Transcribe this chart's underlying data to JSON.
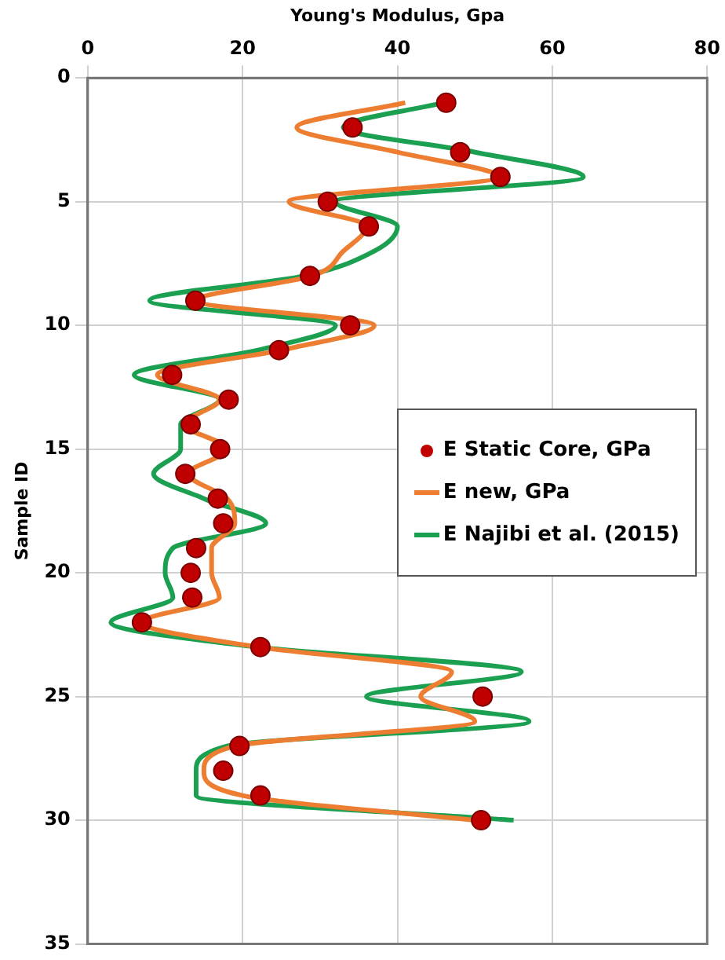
{
  "chart_data": {
    "type": "scatter",
    "xlabel": "Young's Modulus, Gpa",
    "ylabel": "Sample ID",
    "xlim": [
      0,
      80
    ],
    "xticks": [
      0,
      20,
      40,
      60,
      80
    ],
    "ylim": [
      35,
      0
    ],
    "yticks": [
      0,
      5,
      10,
      15,
      20,
      25,
      30,
      35
    ],
    "grid": true,
    "legend": "right",
    "series": [
      {
        "name": "E Static Core, GPa",
        "marker": "circle",
        "color": "#c00000",
        "x": [
          46.3,
          34.2,
          48.1,
          53.3,
          31.0,
          36.3,
          28.7,
          13.9,
          33.9,
          24.7,
          10.9,
          18.2,
          13.3,
          17.1,
          12.6,
          16.8,
          17.5,
          14.0,
          13.3,
          13.5,
          7.0,
          22.3,
          51.0,
          19.6,
          17.5,
          22.3,
          50.8
        ],
        "values": [
          1,
          2,
          3,
          4,
          5,
          6,
          8,
          9,
          10,
          11,
          12,
          13,
          14,
          15,
          16,
          17,
          18,
          19,
          20,
          21,
          22,
          23,
          25,
          27,
          28,
          29,
          30
        ]
      },
      {
        "name": "E new, GPa",
        "type": "line",
        "marker": "none",
        "color": "#ed7d31",
        "x": [
          41,
          27,
          40,
          53,
          26,
          36,
          33,
          29,
          14,
          37,
          25,
          9,
          17,
          12.5,
          18,
          13,
          18,
          19,
          16,
          16,
          17,
          7,
          22,
          47,
          43,
          50,
          19,
          15,
          20,
          50
        ],
        "values": [
          1,
          2,
          3,
          4,
          5,
          6,
          7,
          8,
          9,
          10,
          11,
          12,
          13,
          14,
          15,
          16,
          17,
          18,
          19,
          20,
          21,
          22,
          23,
          24,
          25,
          26,
          27,
          28,
          29,
          30
        ]
      },
      {
        "name": "E Najibi et al. (2015)",
        "type": "line",
        "marker": "none",
        "color": "#1aa050",
        "x": [
          46,
          33,
          50,
          64,
          32,
          40,
          37,
          28,
          8,
          32,
          22,
          6,
          17,
          12,
          12,
          8.5,
          15,
          23,
          11,
          10,
          11,
          3,
          22,
          56,
          36,
          57,
          18,
          14,
          14,
          55
        ],
        "values": [
          1,
          2,
          3,
          4,
          5,
          6,
          7,
          8,
          9,
          10,
          11,
          12,
          13,
          14,
          15,
          16,
          17,
          18,
          19,
          20,
          21,
          22,
          23,
          24,
          25,
          26,
          27,
          28,
          29,
          30
        ]
      }
    ]
  }
}
